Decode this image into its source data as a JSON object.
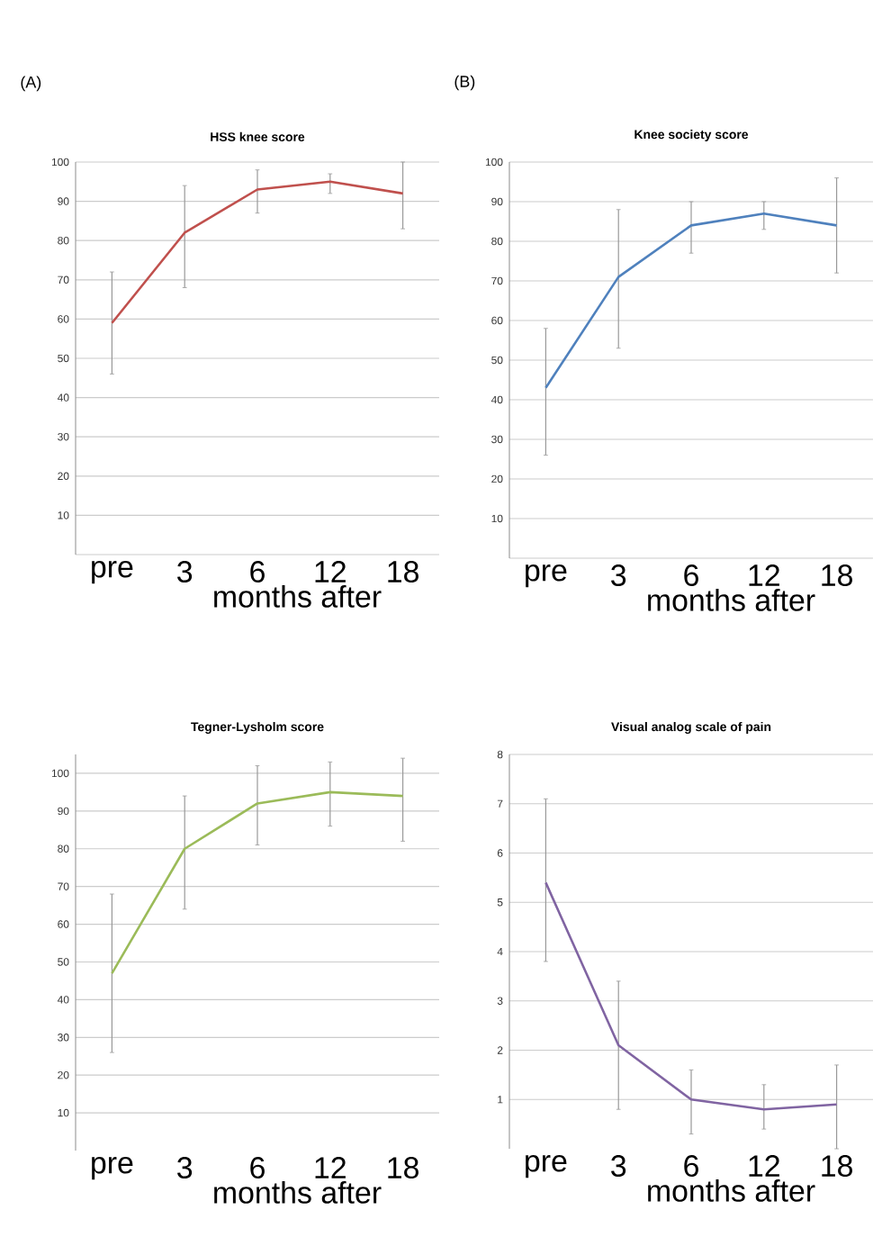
{
  "chart_data": [
    {
      "type": "line",
      "title": "HSS knee score",
      "xlabel": "months after",
      "annotations": [
        "(A)"
      ],
      "categories": [
        "pre",
        "3",
        "6",
        "12",
        "18"
      ],
      "ylim": [
        0,
        100
      ],
      "yticks": [
        {
          "value": 0,
          "label": null
        },
        10,
        20,
        30,
        40,
        50,
        60,
        70,
        80,
        90,
        100
      ],
      "grid": "y",
      "marker": "none",
      "line_style": "solid",
      "series": [
        {
          "color": "#c0504d",
          "values": [
            59,
            82,
            93,
            95,
            92
          ],
          "errors": [
            [
              46,
              72
            ],
            [
              68,
              94
            ],
            [
              87,
              98
            ],
            [
              92,
              97
            ],
            [
              83,
              100
            ]
          ]
        }
      ]
    },
    {
      "type": "line",
      "title": "Knee society score",
      "xlabel": "months after",
      "annotations": [
        "(B)"
      ],
      "categories": [
        "pre",
        "3",
        "6",
        "12",
        "18"
      ],
      "ylim": [
        0,
        100
      ],
      "yticks": [
        {
          "value": 0,
          "label": null
        },
        10,
        20,
        30,
        40,
        50,
        60,
        70,
        80,
        90,
        100
      ],
      "grid": "y",
      "marker": "none",
      "line_style": "solid",
      "series": [
        {
          "color": "#4f81bd",
          "values": [
            43,
            71,
            84,
            87,
            84
          ],
          "errors": [
            [
              26,
              58
            ],
            [
              53,
              88
            ],
            [
              77,
              90
            ],
            [
              83,
              90
            ],
            [
              72,
              96
            ]
          ]
        }
      ]
    },
    {
      "type": "line",
      "title": "Tegner-Lysholm score",
      "xlabel": "months after",
      "categories": [
        "pre",
        "3",
        "6",
        "12",
        "18"
      ],
      "ylim": [
        0,
        105
      ],
      "yticks": [
        10,
        20,
        30,
        40,
        50,
        60,
        70,
        80,
        90,
        100
      ],
      "grid": "y",
      "marker": "none",
      "line_style": "solid",
      "series": [
        {
          "color": "#9bbb59",
          "values": [
            47,
            80,
            92,
            95,
            94
          ],
          "errors": [
            [
              26,
              68
            ],
            [
              64,
              94
            ],
            [
              81,
              102
            ],
            [
              86,
              103
            ],
            [
              82,
              104
            ]
          ]
        }
      ]
    },
    {
      "type": "line",
      "title": "Visual analog scale of pain",
      "xlabel": "months after",
      "categories": [
        "pre",
        "3",
        "6",
        "12",
        "18"
      ],
      "ylim": [
        0,
        8
      ],
      "yticks": [
        1,
        2,
        3,
        4,
        5,
        6,
        7,
        8
      ],
      "grid": "y",
      "marker": "none",
      "line_style": "solid",
      "series": [
        {
          "color": "#8064a2",
          "values": [
            5.4,
            2.1,
            1.0,
            0.8,
            0.9
          ],
          "errors": [
            [
              3.8,
              7.1
            ],
            [
              0.8,
              3.4
            ],
            [
              0.3,
              1.6
            ],
            [
              0.4,
              1.3
            ],
            [
              0,
              1.7
            ]
          ]
        }
      ]
    }
  ]
}
